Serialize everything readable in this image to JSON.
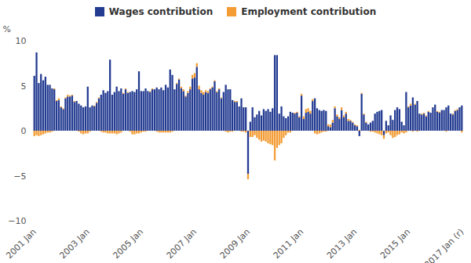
{
  "chart_data": {
    "type": "bar",
    "stacked": true,
    "grid": false,
    "ylabel": "%",
    "ylim": [
      -10,
      10
    ],
    "yticks": [
      -10,
      -5,
      0,
      5,
      10
    ],
    "categories": [
      "2001 Jan",
      null,
      null,
      null,
      null,
      null,
      null,
      null,
      null,
      null,
      null,
      null,
      null,
      null,
      null,
      null,
      null,
      null,
      null,
      null,
      null,
      null,
      null,
      null,
      "2003 Jan",
      null,
      null,
      null,
      null,
      null,
      null,
      null,
      null,
      null,
      null,
      null,
      null,
      null,
      null,
      null,
      null,
      null,
      null,
      null,
      null,
      null,
      null,
      null,
      "2005 Jan",
      null,
      null,
      null,
      null,
      null,
      null,
      null,
      null,
      null,
      null,
      null,
      null,
      null,
      null,
      null,
      null,
      null,
      null,
      null,
      null,
      null,
      null,
      null,
      "2007 Jan",
      null,
      null,
      null,
      null,
      null,
      null,
      null,
      null,
      null,
      null,
      null,
      null,
      null,
      null,
      null,
      null,
      null,
      null,
      null,
      null,
      null,
      null,
      null,
      "2009 Jan",
      null,
      null,
      null,
      null,
      null,
      null,
      null,
      null,
      null,
      null,
      null,
      null,
      null,
      null,
      null,
      null,
      null,
      null,
      null,
      null,
      null,
      null,
      null,
      "2011 Jan",
      null,
      null,
      null,
      null,
      null,
      null,
      null,
      null,
      null,
      null,
      null,
      null,
      null,
      null,
      null,
      null,
      null,
      null,
      null,
      null,
      null,
      null,
      null,
      "2013 Jan",
      null,
      null,
      null,
      null,
      null,
      null,
      null,
      null,
      null,
      null,
      null,
      null,
      null,
      null,
      null,
      null,
      null,
      null,
      null,
      null,
      null,
      null,
      null,
      "2015 Jan",
      null,
      null,
      null,
      null,
      null,
      null,
      null,
      null,
      null,
      null,
      null,
      null,
      null,
      null,
      null,
      null,
      null,
      null,
      null,
      null,
      null,
      null,
      null,
      "2017 Jan (r)"
    ],
    "series": [
      {
        "name": "Wages contribution",
        "color": "#233b91",
        "values": [
          6.1,
          8.7,
          5.3,
          6.3,
          5.6,
          6.0,
          5.1,
          5.1,
          4.7,
          4.6,
          3.3,
          3.4,
          2.6,
          2.4,
          3.6,
          3.8,
          3.8,
          3.9,
          3.2,
          3.3,
          3.0,
          2.8,
          2.6,
          2.7,
          4.9,
          2.6,
          2.8,
          2.7,
          3.1,
          3.6,
          4.0,
          4.5,
          4.2,
          4.4,
          7.9,
          4.0,
          4.3,
          4.9,
          4.4,
          4.7,
          4.1,
          4.6,
          4.2,
          4.3,
          4.4,
          4.3,
          4.6,
          6.6,
          4.4,
          4.4,
          4.7,
          4.4,
          4.3,
          4.6,
          4.6,
          4.8,
          4.6,
          4.8,
          4.5,
          5.1,
          4.8,
          6.8,
          6.2,
          4.6,
          5.2,
          5.7,
          4.7,
          4.4,
          3.8,
          4.2,
          4.6,
          5.8,
          5.9,
          7.1,
          4.6,
          4.2,
          4.0,
          4.3,
          4.2,
          4.6,
          4.8,
          5.5,
          4.3,
          4.6,
          3.6,
          4.3,
          5.1,
          4.6,
          4.6,
          3.4,
          3.2,
          3.2,
          2.7,
          3.6,
          2.6,
          2.6,
          -4.8,
          1.0,
          2.6,
          1.5,
          1.8,
          2.2,
          1.7,
          2.4,
          2.2,
          2.4,
          2.1,
          2.5,
          8.4,
          8.4,
          1.9,
          2.7,
          1.6,
          1.4,
          1.6,
          2.1,
          2.0,
          1.9,
          2.0,
          1.5,
          3.9,
          1.3,
          2.0,
          2.1,
          1.9,
          3.3,
          3.6,
          2.5,
          2.3,
          2.2,
          2.3,
          2.2,
          0.5,
          0.4,
          0.9,
          2.5,
          1.6,
          1.3,
          2.3,
          1.5,
          1.9,
          1.1,
          1.1,
          0.9,
          0.6,
          0.5,
          -0.6,
          4.1,
          1.8,
          0.9,
          0.7,
          0.9,
          1.1,
          1.9,
          2.1,
          2.2,
          2.3,
          -0.5,
          1.1,
          0.6,
          1.7,
          1.2,
          2.3,
          2.6,
          2.4,
          1.0,
          0.6,
          4.3,
          2.6,
          2.8,
          3.7,
          2.9,
          3.3,
          1.9,
          1.8,
          1.9,
          1.6,
          2.1,
          2.0,
          2.6,
          2.9,
          2.1,
          2.0,
          2.3,
          2.3,
          2.6,
          2.8,
          1.9,
          1.8,
          2.2,
          2.3,
          2.6,
          2.8
        ]
      },
      {
        "name": "Employment contribution",
        "color": "#f39c34",
        "values": [
          -0.6,
          -0.5,
          -0.6,
          -0.5,
          -0.4,
          -0.3,
          -0.2,
          -0.2,
          -0.1,
          0.1,
          0.1,
          0.2,
          0.1,
          0.1,
          0.1,
          0.2,
          0.1,
          0.1,
          0.1,
          0,
          -0.1,
          -0.3,
          -0.4,
          -0.3,
          -0.3,
          -0.1,
          0,
          0.1,
          0.1,
          0.1,
          -0.1,
          -0.2,
          -0.2,
          -0.3,
          -0.3,
          -0.3,
          -0.3,
          -0.4,
          -0.3,
          -0.2,
          0.1,
          0.1,
          0.1,
          -0.1,
          -0.4,
          -0.4,
          -0.3,
          -0.3,
          -0.2,
          -0.1,
          -0.1,
          0,
          0.1,
          0.1,
          0,
          -0.1,
          -0.2,
          -0.2,
          -0.2,
          -0.2,
          -0.2,
          -0.2,
          -0.1,
          0,
          0.1,
          0.1,
          0.2,
          0.2,
          0.1,
          0.2,
          0.3,
          0.4,
          0.5,
          0.4,
          0.4,
          0.3,
          0.3,
          0.2,
          0.2,
          0.1,
          0.1,
          0.1,
          0.1,
          0.1,
          0.1,
          0,
          -0.1,
          -0.2,
          -0.1,
          -0.1,
          0.1,
          0.1,
          0,
          -0.1,
          -0.1,
          -0.2,
          -0.6,
          -0.7,
          -0.7,
          -0.5,
          -0.8,
          -1.0,
          -1.2,
          -1.1,
          -1.2,
          -1.4,
          -1.5,
          -1.6,
          -3.3,
          -1.9,
          -1.6,
          -1.4,
          -0.8,
          -0.5,
          -0.2,
          -0.2,
          0,
          0.1,
          0.1,
          0.1,
          0.2,
          0.3,
          0.4,
          0.4,
          0.3,
          0.2,
          -0.3,
          -0.4,
          -0.3,
          -0.2,
          -0.1,
          -0.1,
          0.2,
          0.3,
          0.3,
          0.2,
          0.2,
          0.2,
          0.3,
          0.2,
          0.2,
          0.2,
          0.1,
          0.1,
          0.1,
          0.1,
          0.1,
          0.1,
          0.1,
          0.1,
          0,
          -0.1,
          -0.1,
          -0.2,
          -0.3,
          -0.4,
          -0.5,
          -0.4,
          -0.3,
          -0.2,
          -0.5,
          -0.8,
          -0.7,
          -0.5,
          -0.4,
          -0.2,
          -0.3,
          -0.2,
          0.1,
          0.2,
          -0.1,
          0.1,
          -0.1,
          0,
          0.1,
          0.1,
          0.1,
          0.1,
          0,
          0,
          0,
          0.1,
          0.1,
          0,
          0,
          -0.1,
          0,
          0,
          0.1,
          0.1,
          0.1,
          0,
          -0.2
        ]
      }
    ]
  }
}
